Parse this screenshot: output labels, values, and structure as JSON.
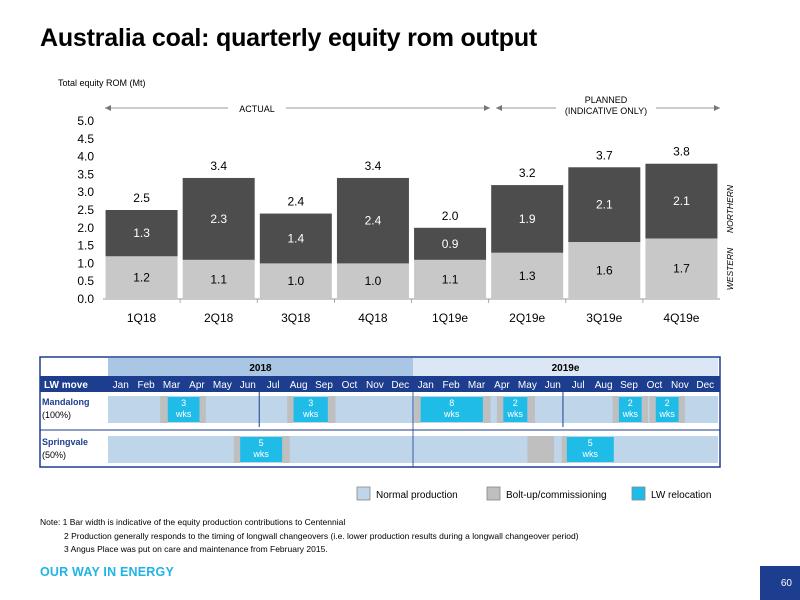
{
  "title": "Australia coal: quarterly equity rom output",
  "chart_data": {
    "type": "bar",
    "stacked": true,
    "ylabel": "Total equity ROM (Mt)",
    "ylim": [
      0,
      5.0
    ],
    "yticks": [
      "0.0",
      "0.5",
      "1.0",
      "1.5",
      "2.0",
      "2.5",
      "3.0",
      "3.5",
      "4.0",
      "4.5",
      "5.0"
    ],
    "categories": [
      "1Q18",
      "2Q18",
      "3Q18",
      "4Q18",
      "1Q19e",
      "2Q19e",
      "3Q19e",
      "4Q19e"
    ],
    "series": [
      {
        "name": "WESTERN",
        "color": "#c8c8c8",
        "values": [
          1.2,
          1.1,
          1.0,
          1.0,
          1.1,
          1.3,
          1.6,
          1.7
        ],
        "labels": [
          "1.2",
          "1.1",
          "1.0",
          "1.0",
          "1.1",
          "1.3",
          "1.6",
          "1.7"
        ]
      },
      {
        "name": "NORTHERN",
        "color": "#4d4d4d",
        "values": [
          1.3,
          2.3,
          1.4,
          2.4,
          0.9,
          1.9,
          2.1,
          2.1
        ],
        "labels": [
          "1.3",
          "2.3",
          "1.4",
          "2.4",
          "0.9",
          "1.9",
          "2.1",
          "2.1"
        ]
      }
    ],
    "totals": [
      "2.5",
      "3.4",
      "2.4",
      "3.4",
      "2.0",
      "3.2",
      "3.7",
      "3.8"
    ],
    "annotations": {
      "actual": "ACTUAL",
      "planned_line1": "PLANNED",
      "planned_line2": "(INDICATIVE ONLY)"
    },
    "grid": false
  },
  "gantt": {
    "year1": "2018",
    "year2": "2019e",
    "header_label": "LW move",
    "months": [
      "Jan",
      "Feb",
      "Mar",
      "Apr",
      "May",
      "Jun",
      "Jul",
      "Aug",
      "Sep",
      "Oct",
      "Nov",
      "Dec",
      "Jan",
      "Feb",
      "Mar",
      "Apr",
      "May",
      "Jun",
      "Jul",
      "Aug",
      "Sep",
      "Oct",
      "Nov",
      "Dec"
    ],
    "rows": [
      {
        "name_line1": "Mandalong",
        "name_line2": "(100%)",
        "boltups": [
          [
            2.05,
            2.35
          ],
          [
            3.6,
            3.85
          ],
          [
            7.05,
            7.3
          ],
          [
            8.65,
            8.95
          ],
          [
            12.05,
            12.3
          ],
          [
            14.75,
            15.05
          ],
          [
            15.3,
            15.55
          ],
          [
            16.5,
            16.8
          ],
          [
            19.85,
            20.1
          ],
          [
            21.0,
            21.25
          ],
          [
            21.3,
            21.55
          ],
          [
            22.45,
            22.7
          ]
        ],
        "relocations": [
          {
            "start": 2.35,
            "end": 3.6,
            "num": "3",
            "unit": "wks"
          },
          {
            "start": 7.3,
            "end": 8.65,
            "num": "3",
            "unit": "wks"
          },
          {
            "start": 12.3,
            "end": 14.75,
            "num": "8",
            "unit": "wks"
          },
          {
            "start": 15.55,
            "end": 16.5,
            "num": "2",
            "unit": "wks"
          },
          {
            "start": 20.1,
            "end": 21.0,
            "num": "2",
            "unit": "wks"
          },
          {
            "start": 21.55,
            "end": 22.45,
            "num": "2",
            "unit": "wks"
          }
        ],
        "markers": [
          5.95,
          17.9
        ]
      },
      {
        "name_line1": "Springvale",
        "name_line2": "(50%)",
        "boltups": [
          [
            4.95,
            5.2
          ],
          [
            6.85,
            7.15
          ],
          [
            16.5,
            17.55
          ],
          [
            17.85,
            18.05
          ]
        ],
        "relocations": [
          {
            "start": 5.2,
            "end": 6.85,
            "num": "5",
            "unit": "wks"
          },
          {
            "start": 18.05,
            "end": 19.9,
            "num": "5",
            "unit": "wks"
          }
        ],
        "markers": []
      }
    ]
  },
  "legend": [
    {
      "label": "Normal production",
      "color": "#bfd6ea"
    },
    {
      "label": "Bolt-up/commissioning",
      "color": "#bfbfbf"
    },
    {
      "label": "LW relocation",
      "color": "#1fbce8"
    }
  ],
  "notes": {
    "line1": "Note: 1 Bar width is indicative of the equity production contributions to Centennial",
    "line2": "2 Production generally responds to the timing of longwall changeovers (i.e. lower production results during a longwall changeover period)",
    "line3": "3  Angus Place was put on care and maintenance from February 2015."
  },
  "footer": "OUR WAY IN ENERGY",
  "page_number": "60"
}
